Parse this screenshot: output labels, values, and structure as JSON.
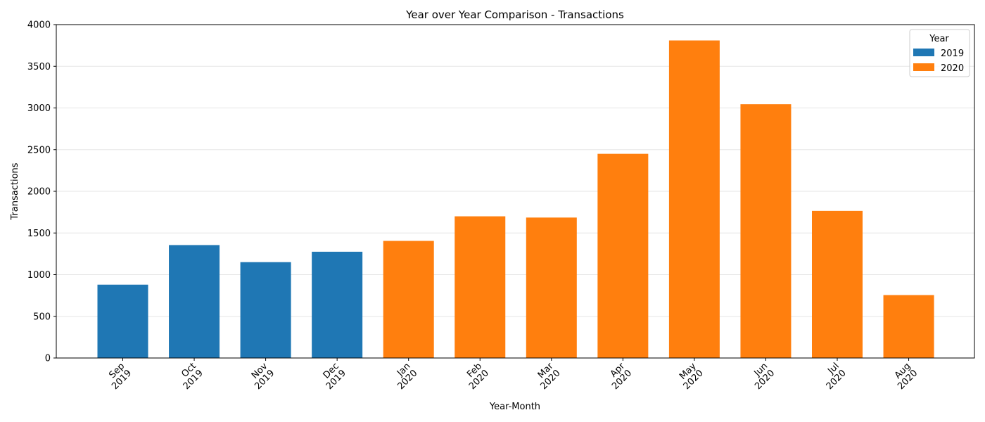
{
  "chart_data": {
    "type": "bar",
    "title": "Year over Year Comparison - Transactions",
    "xlabel": "Year-Month",
    "ylabel": "Transactions",
    "ylim": [
      0,
      4000
    ],
    "yticks": [
      0,
      500,
      1000,
      1500,
      2000,
      2500,
      3000,
      3500,
      4000
    ],
    "grid": "y",
    "categories": [
      {
        "month": "Sep",
        "year": "2019"
      },
      {
        "month": "Oct",
        "year": "2019"
      },
      {
        "month": "Nov",
        "year": "2019"
      },
      {
        "month": "Dec",
        "year": "2019"
      },
      {
        "month": "Jan",
        "year": "2020"
      },
      {
        "month": "Feb",
        "year": "2020"
      },
      {
        "month": "Mar",
        "year": "2020"
      },
      {
        "month": "Apr",
        "year": "2020"
      },
      {
        "month": "May",
        "year": "2020"
      },
      {
        "month": "Jun",
        "year": "2020"
      },
      {
        "month": "Jul",
        "year": "2020"
      },
      {
        "month": "Aug",
        "year": "2020"
      }
    ],
    "values": [
      880,
      1355,
      1150,
      1275,
      1405,
      1700,
      1685,
      2450,
      3810,
      3045,
      1765,
      755
    ],
    "legend": {
      "title": "Year",
      "placement": "top-right",
      "entries": [
        {
          "name": "2019",
          "color": "#1f77b4"
        },
        {
          "name": "2020",
          "color": "#ff7f0e"
        }
      ]
    }
  }
}
